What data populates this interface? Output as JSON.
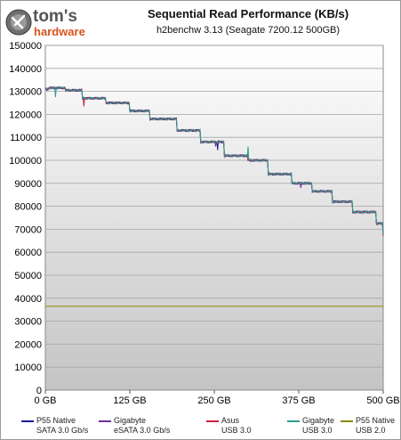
{
  "logo": {
    "brand_top": "tom's",
    "brand_bottom": "hardware",
    "icon": "tomshardware-logo"
  },
  "chart_data": {
    "type": "line",
    "title": "Sequential Read Performance (KB/s)",
    "subtitle": "h2benchw 3.13 (Seagate 7200.12 500GB)",
    "xlabel": "",
    "ylabel": "",
    "xlim": [
      0,
      500
    ],
    "ylim": [
      0,
      150000
    ],
    "x_ticks": [
      0,
      125,
      250,
      375,
      500
    ],
    "x_tick_labels": [
      "0 GB",
      "125 GB",
      "250 GB",
      "375 GB",
      "500 GB"
    ],
    "y_ticks": [
      0,
      10000,
      20000,
      30000,
      40000,
      50000,
      60000,
      70000,
      80000,
      90000,
      100000,
      110000,
      120000,
      130000,
      140000,
      150000
    ],
    "grid": true,
    "legend_position": "bottom",
    "zone_profile": {
      "x": [
        0,
        5,
        30,
        55,
        90,
        125,
        155,
        195,
        230,
        265,
        300,
        330,
        365,
        395,
        425,
        455,
        490,
        500
      ],
      "y": [
        131000,
        131500,
        130500,
        127000,
        125000,
        121500,
        118000,
        113000,
        108000,
        102000,
        100000,
        94000,
        90000,
        86500,
        82000,
        77500,
        72500,
        67500
      ]
    },
    "series": [
      {
        "name": "P55 Native SATA 3.0 Gb/s",
        "line1": "P55 Native",
        "line2": "SATA 3.0 Gb/s",
        "color": "#1a1a9a",
        "type": "zone-steps",
        "dips": [
          [
            255,
            104500
          ]
        ]
      },
      {
        "name": "Gigabyte eSATA 3.0 Gb/s",
        "line1": "Gigabyte",
        "line2": "eSATA 3.0 Gb/s",
        "color": "#7030a0",
        "type": "zone-steps",
        "dips": [
          [
            252,
            106000
          ],
          [
            378,
            88000
          ]
        ]
      },
      {
        "name": "Asus USB 3.0",
        "line1": "Asus",
        "line2": "USB 3.0",
        "color": "#cc1f3f",
        "type": "zone-steps",
        "dips": [
          [
            57,
            123500
          ],
          [
            210,
            112500
          ]
        ]
      },
      {
        "name": "Gigabyte USB 3.0",
        "line1": "Gigabyte",
        "line2": "USB 3.0",
        "color": "#2a9d8f",
        "type": "zone-steps",
        "dips": [
          [
            15,
            127500
          ],
          [
            300,
            106000
          ]
        ]
      },
      {
        "name": "P55 Native USB 2.0",
        "line1": "P55 Native",
        "line2": "USB 2.0",
        "color": "#8a8a00",
        "type": "constant",
        "value": 36500
      }
    ]
  }
}
